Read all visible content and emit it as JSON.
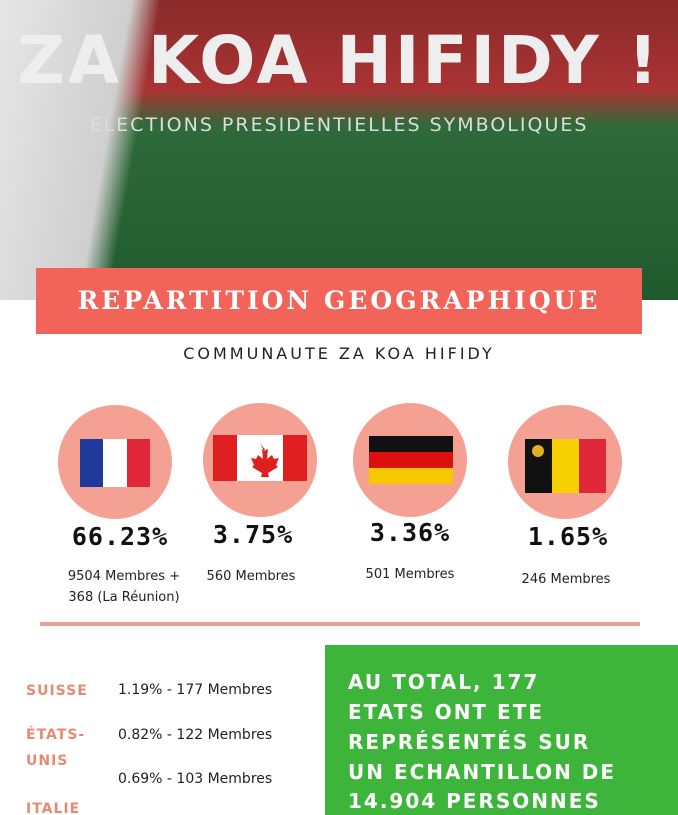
{
  "header": {
    "title": "ZA KOA HIFIDY !",
    "subtitle": "ELECTIONS PRESIDENTIELLES SYMBOLIQUES"
  },
  "section": {
    "title": "REPARTITION GEOGRAPHIQUE",
    "subtitle": "COMMUNAUTE ZA KOA HIFIDY"
  },
  "countries": [
    {
      "share": "66.23%",
      "members": [
        "9504 Membres +",
        "368 (La Réunion)"
      ]
    },
    {
      "share": "3.75%",
      "members": [
        "560 Membres"
      ]
    },
    {
      "share": "3.36%",
      "members": [
        "501 Membres"
      ]
    },
    {
      "share": "1.65%",
      "members": [
        "246 Membres"
      ]
    }
  ],
  "others": [
    {
      "country": [
        "SUISSE"
      ],
      "detail": "1.19% - 177 Membres"
    },
    {
      "country": [
        "ÉTATS-",
        "UNIS"
      ],
      "detail": "0.82% - 122 Membres"
    },
    {
      "country": [
        "ITALIE"
      ],
      "detail": "0.69% - 103 Membres"
    }
  ],
  "total": [
    "AU TOTAL, 177",
    "ETATS ONT ETE",
    "REPRÉSENTÉS SUR",
    "UN ECHANTILLON DE",
    "14.904 PERSONNES"
  ]
}
